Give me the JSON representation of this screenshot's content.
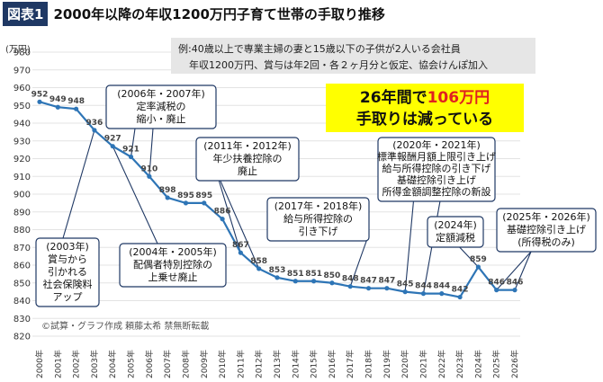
{
  "header": {
    "badge": "図表1",
    "title": "2000年以降の年収1200万円子育て世帯の手取り推移"
  },
  "note": {
    "line1": "例:40歳以上で専業主婦の妻と15歳以下の子供が2人いる会社員",
    "line2": "年収1200万円、賞与は年2回・各２ヶ月分と仮定、協会けんぽ加入"
  },
  "callout": {
    "line1_pre": "26年間で",
    "line1_num": "106万円",
    "line2": "手取りは減っている"
  },
  "credit": "©試算・グラフ作成 頼藤太希 禁無断転載",
  "colors": {
    "line": "#2e75b6",
    "callout_bg": "#ffff00",
    "accent": "#e02020",
    "badge_bg": "#1f3864"
  },
  "annotations": [
    {
      "id": "a2006",
      "lines": [
        "(2006年・2007年)",
        "定率減税の",
        "縮小・廃止"
      ]
    },
    {
      "id": "a2011",
      "lines": [
        "(2011年・2012年)",
        "年少扶養控除の",
        "廃止"
      ]
    },
    {
      "id": "a2017",
      "lines": [
        "(2017年・2018年)",
        "給与所得控除の",
        "引き下げ"
      ]
    },
    {
      "id": "a2020",
      "lines": [
        "(2020年・2021年)",
        "標準報酬月額上限引き上げ",
        "給与所得控除の引き下げ",
        "基礎控除引き上げ",
        "所得金額調整控除の新設"
      ]
    },
    {
      "id": "a2024",
      "lines": [
        "(2024年)",
        "定額減税"
      ]
    },
    {
      "id": "a2025",
      "lines": [
        "(2025年・2026年)",
        "基礎控除引き上げ",
        "(所得税のみ)"
      ]
    },
    {
      "id": "a2003",
      "lines": [
        "(2003年)",
        "賞与から",
        "引かれる",
        "社会保険料",
        "アップ"
      ]
    },
    {
      "id": "a2004",
      "lines": [
        "(2004年・2005年)",
        "配偶者特別控除の",
        "上乗せ廃止"
      ]
    }
  ],
  "chart_data": {
    "type": "line",
    "title": "2000年以降の年収1200万円子育て世帯の手取り推移",
    "ylabel": "(万円)",
    "xlabel": "",
    "ylim": [
      820,
      980
    ],
    "yticks": [
      820,
      830,
      840,
      850,
      860,
      870,
      880,
      890,
      900,
      910,
      920,
      930,
      940,
      950,
      960,
      970,
      980
    ],
    "grid": true,
    "categories": [
      "2000年",
      "2001年",
      "2002年",
      "2003年",
      "2004年",
      "2005年",
      "2006年",
      "2007年",
      "2008年",
      "2009年",
      "2010年",
      "2011年",
      "2012年",
      "2013年",
      "2014年",
      "2015年",
      "2016年",
      "2017年",
      "2018年",
      "2019年",
      "2020年",
      "2021年",
      "2022年",
      "2023年",
      "2024年",
      "2025年",
      "2026年"
    ],
    "series": [
      {
        "values": [
          952,
          949,
          948,
          936,
          927,
          921,
          910,
          898,
          895,
          895,
          886,
          867,
          858,
          853,
          851,
          851,
          850,
          848,
          847,
          847,
          845,
          844,
          844,
          842,
          859,
          846,
          846
        ]
      }
    ]
  }
}
